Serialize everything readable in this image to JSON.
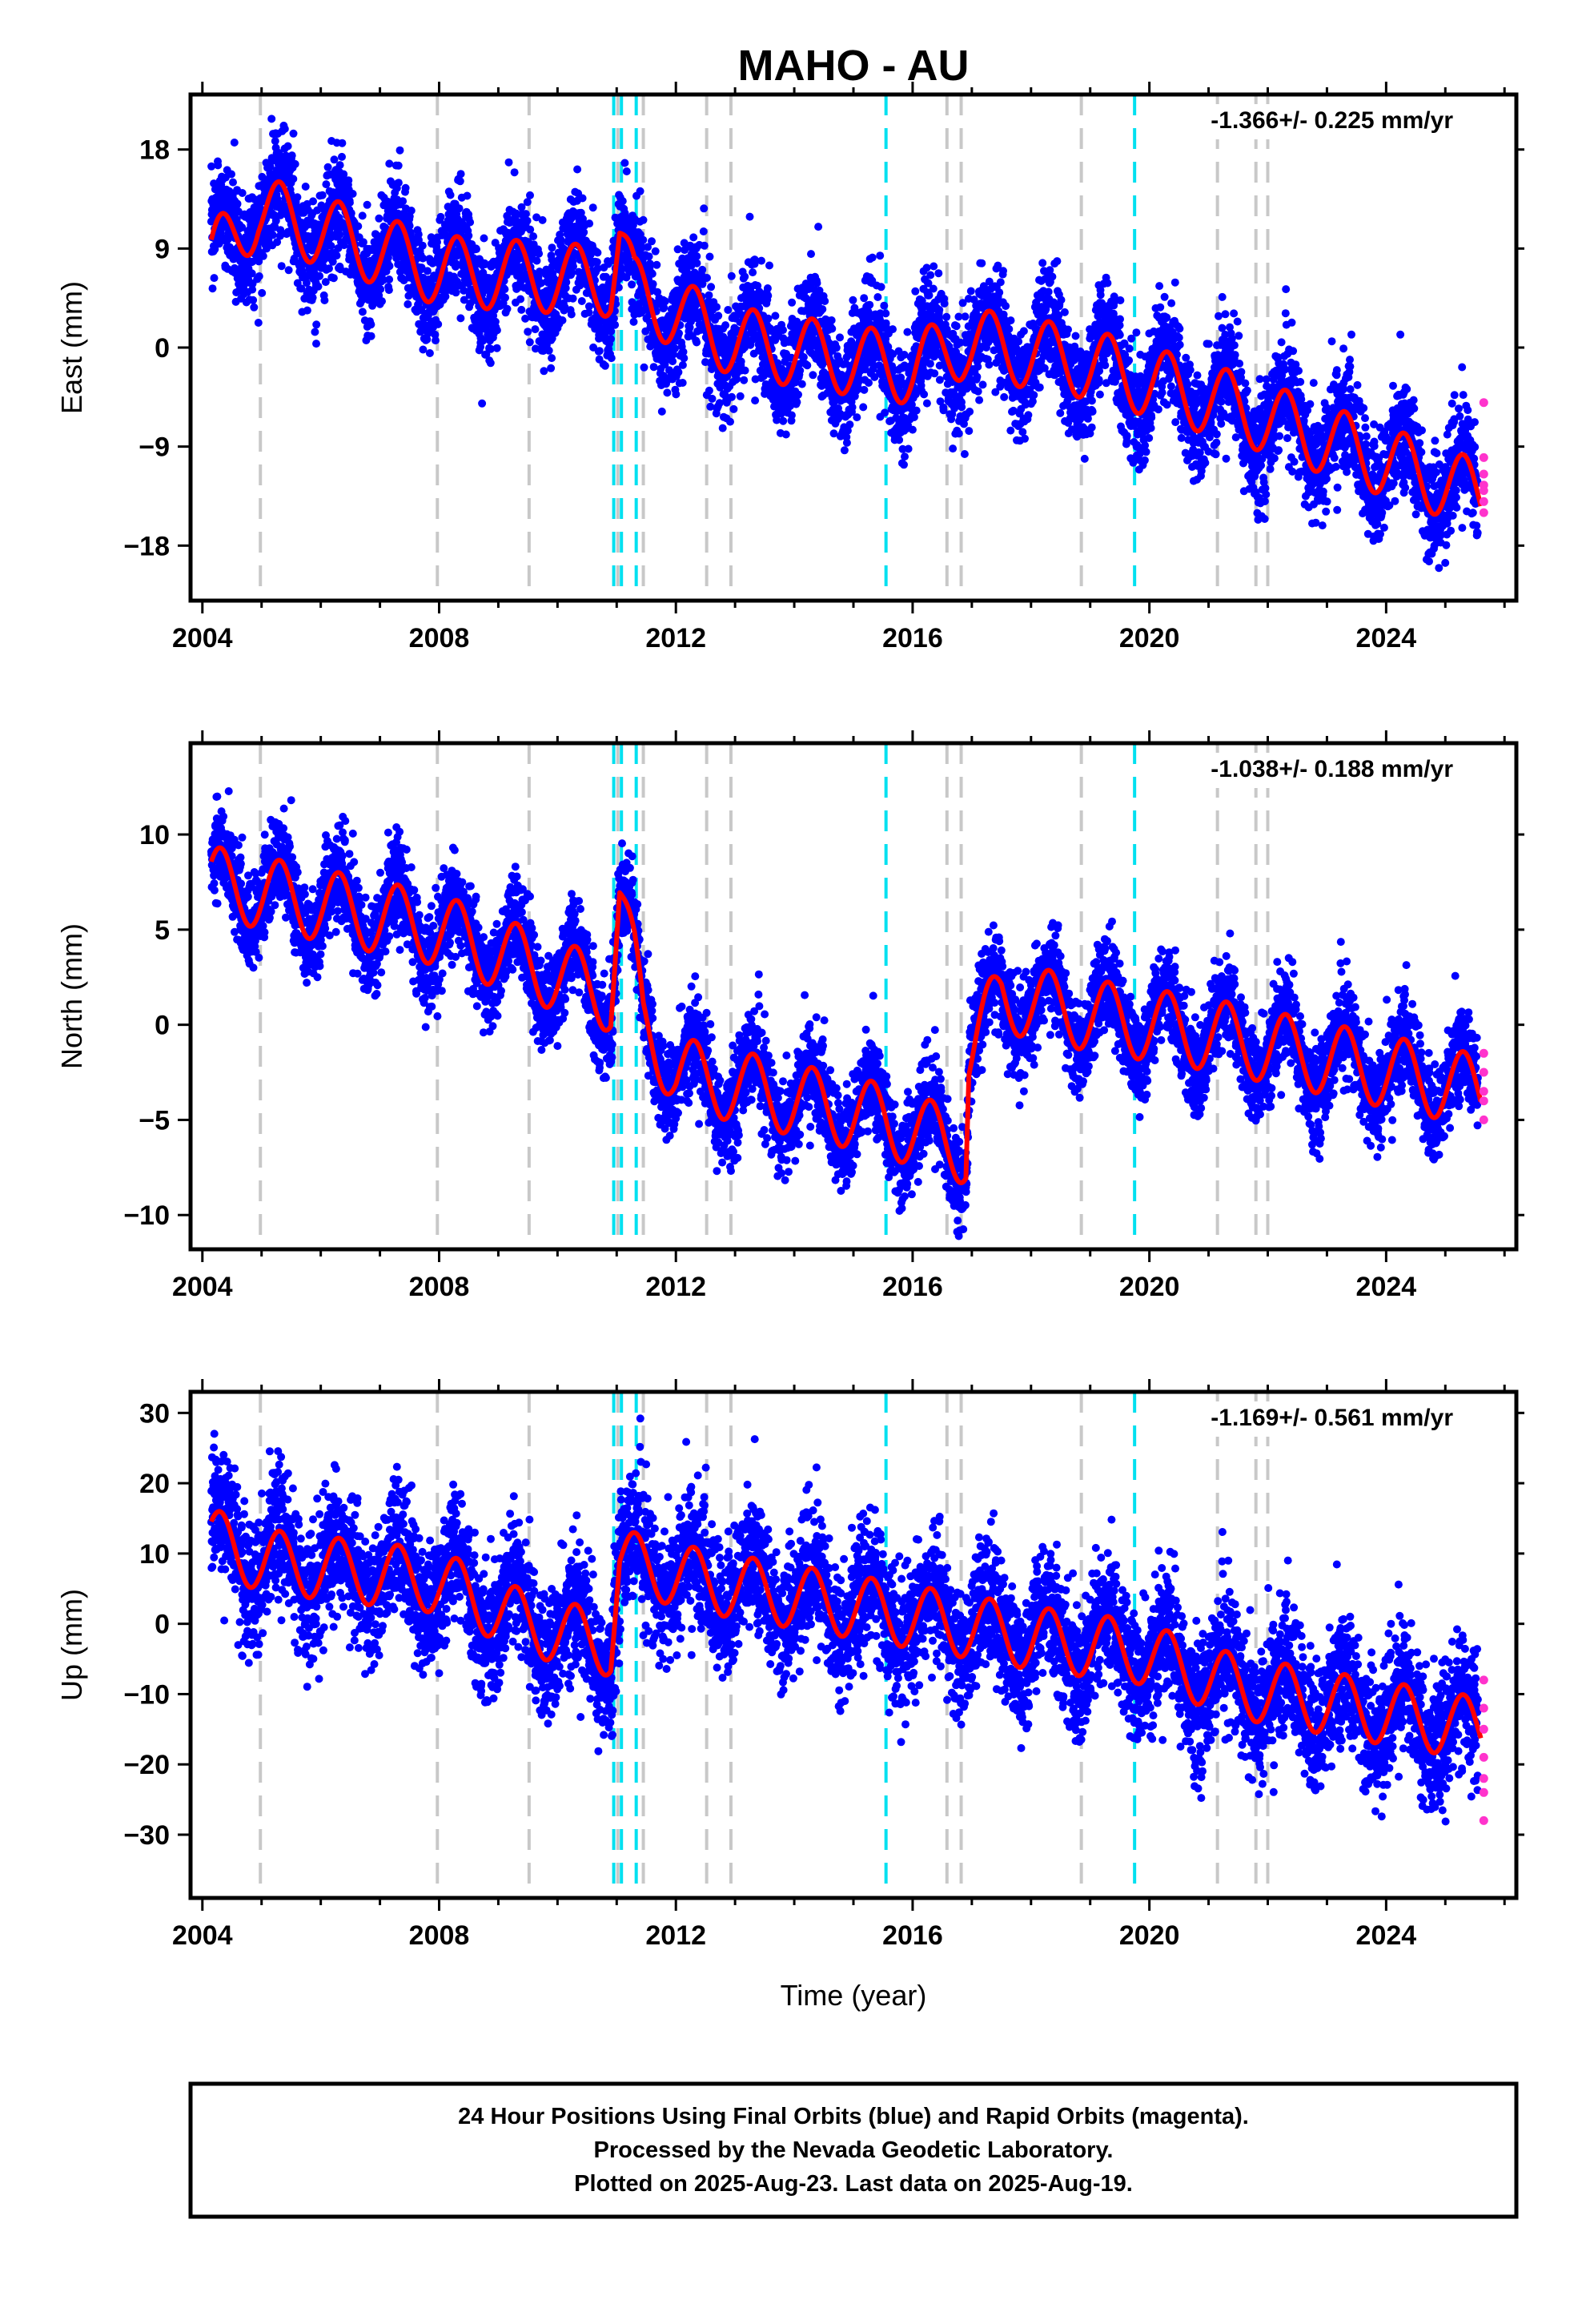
{
  "title": "MAHO - AU",
  "xlabel": "Time (year)",
  "footer": {
    "line1": "24 Hour Positions Using Final Orbits (blue) and Rapid Orbits (magenta).",
    "line2": "Processed by the Nevada Geodetic Laboratory.",
    "line3": "Plotted on 2025-Aug-23. Last data on 2025-Aug-19."
  },
  "colors": {
    "final": "#0000ff",
    "rapid": "#ff33cc",
    "model": "#ff0000",
    "equipment_change": "#c8c8c8",
    "earthquake": "#00e0f0"
  },
  "chart_data": [
    {
      "type": "scatter",
      "component": "East",
      "ylabel": "East (mm)",
      "rate_label": "-1.366+/- 0.225 mm/yr",
      "xlim": [
        2003.8,
        2026.2
      ],
      "ylim": [
        -23,
        23
      ],
      "yticks": [
        -18,
        -9,
        0,
        9,
        18
      ],
      "yticklabels": [
        "−18",
        "−9",
        "0",
        "9",
        "18"
      ],
      "xticks": [
        2004,
        2008,
        2012,
        2016,
        2020,
        2024
      ],
      "xticklabels": [
        "2004",
        "2008",
        "2012",
        "2016",
        "2020",
        "2024"
      ],
      "model_anchors": [
        [
          2004.15,
          8.0
        ],
        [
          2004.95,
          12.5
        ],
        [
          2008.0,
          7.0
        ],
        [
          2010.9,
          6.0
        ],
        [
          2011.05,
          10.5
        ],
        [
          2011.3,
          5.0
        ],
        [
          2013.0,
          0.5
        ],
        [
          2016.0,
          -2.0
        ],
        [
          2016.9,
          0.5
        ],
        [
          2019.0,
          -1.5
        ],
        [
          2021.5,
          -5.5
        ],
        [
          2025.6,
          -13.5
        ]
      ],
      "seasonal_amplitude": 3.2,
      "scatter_sd": 2.4,
      "data_start": 2004.15,
      "data_end": 2025.55,
      "rapid_points": [
        -5,
        -10,
        -11.5,
        -12.5,
        -13,
        -14,
        -15
      ]
    },
    {
      "type": "scatter",
      "component": "North",
      "ylabel": "North (mm)",
      "rate_label": "-1.038+/- 0.188 mm/yr",
      "xlim": [
        2003.8,
        2026.2
      ],
      "ylim": [
        -11.8,
        14.8
      ],
      "yticks": [
        -10,
        -5,
        0,
        5,
        10
      ],
      "yticklabels": [
        "−10",
        "−5",
        "0",
        "5",
        "10"
      ],
      "xticks": [
        2004,
        2008,
        2012,
        2016,
        2020,
        2024
      ],
      "xticklabels": [
        "2004",
        "2008",
        "2012",
        "2016",
        "2020",
        "2024"
      ],
      "model_anchors": [
        [
          2004.15,
          7.5
        ],
        [
          2008.0,
          5.0
        ],
        [
          2010.9,
          1.5
        ],
        [
          2011.05,
          7.0
        ],
        [
          2011.3,
          3.0
        ],
        [
          2011.45,
          0.0
        ],
        [
          2012.0,
          -2.5
        ],
        [
          2015.5,
          -5.0
        ],
        [
          2016.9,
          -6.5
        ],
        [
          2016.95,
          -1.5
        ],
        [
          2017.5,
          1.5
        ],
        [
          2019.0,
          0.5
        ],
        [
          2021.0,
          -0.5
        ],
        [
          2025.6,
          -3.5
        ]
      ],
      "seasonal_amplitude": 1.9,
      "scatter_sd": 1.2,
      "data_start": 2004.15,
      "data_end": 2025.55,
      "rapid_points": [
        -1.5,
        -2.5,
        -3.5,
        -4,
        -5
      ]
    },
    {
      "type": "scatter",
      "component": "Up",
      "ylabel": "Up (mm)",
      "rate_label": "-1.169+/- 0.561 mm/yr",
      "xlim": [
        2003.8,
        2026.2
      ],
      "ylim": [
        -39,
        33
      ],
      "yticks": [
        -30,
        -20,
        -10,
        0,
        10,
        20,
        30
      ],
      "yticklabels": [
        "−30",
        "−20",
        "−10",
        "0",
        "10",
        "20",
        "30"
      ],
      "xticks": [
        2004,
        2008,
        2012,
        2016,
        2020,
        2024
      ],
      "xticklabels": [
        "2004",
        "2008",
        "2012",
        "2016",
        "2020",
        "2024"
      ],
      "model_anchors": [
        [
          2004.15,
          12.0
        ],
        [
          2005.0,
          9.0
        ],
        [
          2008.0,
          6.0
        ],
        [
          2009.5,
          0.0
        ],
        [
          2010.9,
          -3.0
        ],
        [
          2011.05,
          9.0
        ],
        [
          2012.5,
          6.0
        ],
        [
          2016.0,
          1.0
        ],
        [
          2018.0,
          -2.0
        ],
        [
          2019.8,
          -4.0
        ],
        [
          2021.5,
          -9.0
        ],
        [
          2023.5,
          -12.0
        ],
        [
          2025.6,
          -15.0
        ]
      ],
      "seasonal_amplitude": 4.5,
      "scatter_sd": 4.5,
      "data_start": 2004.15,
      "data_end": 2025.55,
      "rapid_points": [
        -8,
        -12,
        -15,
        -19,
        -22,
        -24,
        -28
      ]
    }
  ],
  "equipment_changes": [
    2004.98,
    2007.97,
    2009.52,
    2011.02,
    2011.45,
    2012.52,
    2012.93,
    2016.58,
    2016.82,
    2018.85,
    2021.15,
    2021.8,
    2022.0
  ],
  "earthquakes": [
    2010.95,
    2011.08,
    2011.33,
    2015.55,
    2019.75
  ]
}
